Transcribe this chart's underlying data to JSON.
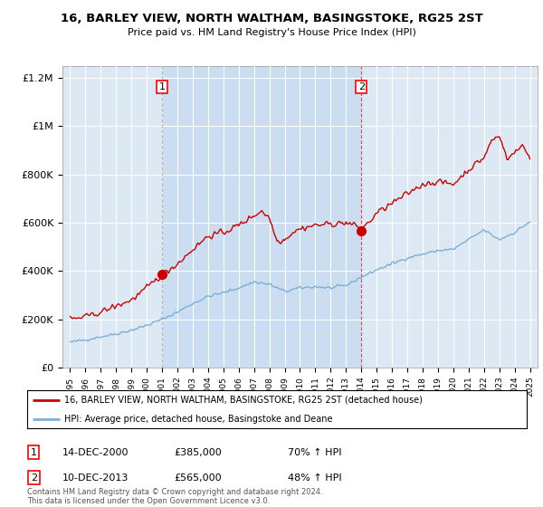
{
  "title_line1": "16, BARLEY VIEW, NORTH WALTHAM, BASINGSTOKE, RG25 2ST",
  "title_line2": "Price paid vs. HM Land Registry's House Price Index (HPI)",
  "bg_color": "#dce9f5",
  "red_line_color": "#cc0000",
  "blue_line_color": "#7bafd4",
  "shade_color": "#c5d9f0",
  "sale1_date": "14-DEC-2000",
  "sale1_price": 385000,
  "sale1_hpi_pct": "70% ↑ HPI",
  "sale1_x": 2001.0,
  "sale2_date": "10-DEC-2013",
  "sale2_price": 565000,
  "sale2_hpi_pct": "48% ↑ HPI",
  "sale2_x": 2014.0,
  "legend_red": "16, BARLEY VIEW, NORTH WALTHAM, BASINGSTOKE, RG25 2ST (detached house)",
  "legend_blue": "HPI: Average price, detached house, Basingstoke and Deane",
  "footnote": "Contains HM Land Registry data © Crown copyright and database right 2024.\nThis data is licensed under the Open Government Licence v3.0.",
  "ylim": [
    0,
    1250000
  ],
  "xlim_start": 1994.5,
  "xlim_end": 2025.5
}
